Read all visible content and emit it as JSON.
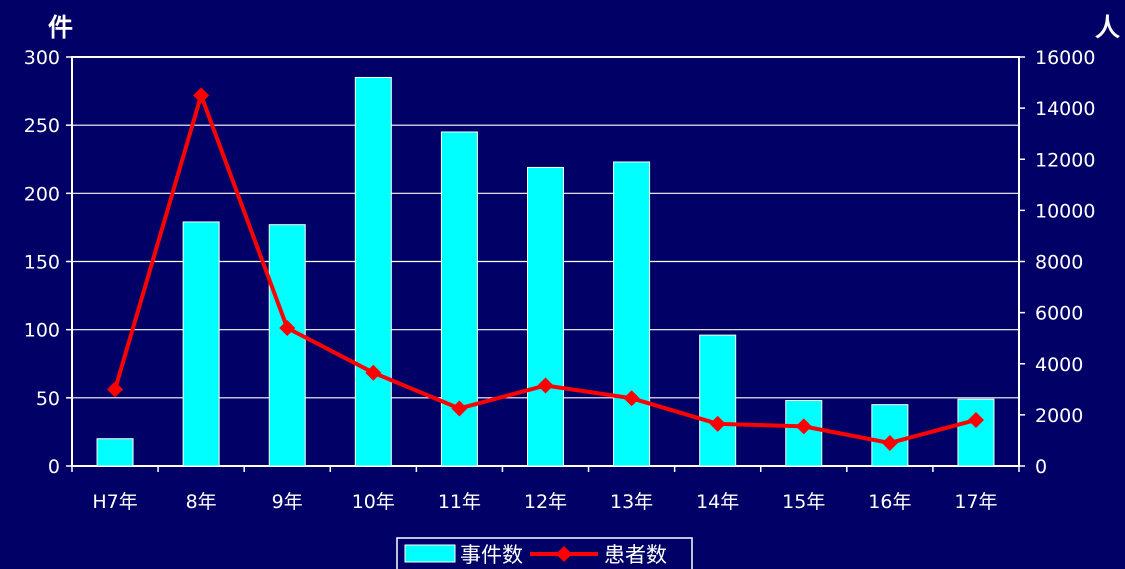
{
  "chart_data": {
    "type": "bar",
    "categories": [
      "H7年",
      "8年",
      "9年",
      "10年",
      "11年",
      "12年",
      "13年",
      "14年",
      "15年",
      "16年",
      "17年"
    ],
    "series": [
      {
        "name": "事件数",
        "type": "bar",
        "axis": "left",
        "color": "#00ffff",
        "values": [
          20,
          179,
          177,
          285,
          245,
          219,
          223,
          96,
          48,
          45,
          49
        ]
      },
      {
        "name": "患者数",
        "type": "line",
        "axis": "right",
        "color": "#ff0000",
        "values": [
          3000,
          14500,
          5400,
          3650,
          2250,
          3150,
          2650,
          1650,
          1550,
          900,
          1800
        ]
      }
    ],
    "left_axis": {
      "unit": "件",
      "min": 0,
      "max": 300,
      "ticks": [
        0,
        50,
        100,
        150,
        200,
        250,
        300
      ]
    },
    "right_axis": {
      "unit": "人",
      "min": 0,
      "max": 16000,
      "ticks": [
        0,
        2000,
        4000,
        6000,
        8000,
        10000,
        12000,
        14000,
        16000
      ]
    },
    "grid": true,
    "legend": "bottom"
  }
}
